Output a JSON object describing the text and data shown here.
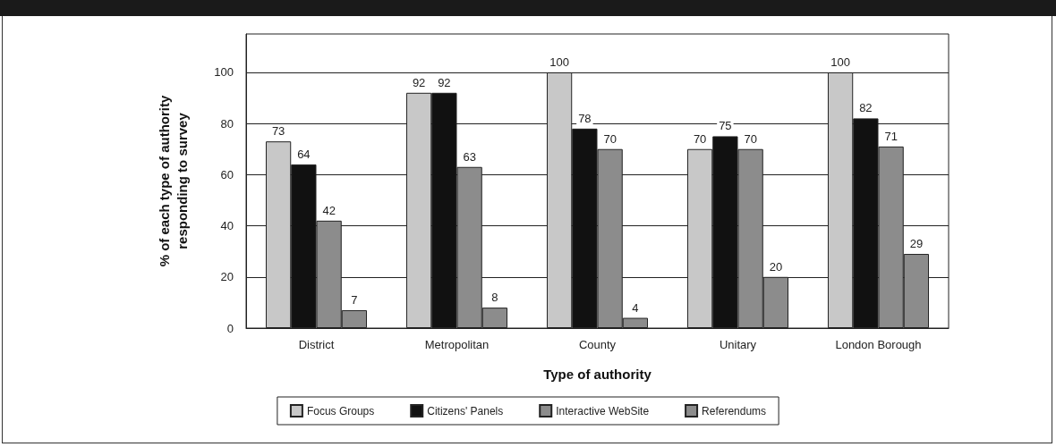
{
  "chart_data": {
    "type": "bar",
    "xlabel": "Type of authority",
    "ylabel": "% of each type of authority\nresponding to survey",
    "categories": [
      "District",
      "Metropolitan",
      "County",
      "Unitary",
      "London Borough"
    ],
    "series": [
      {
        "name": "Focus Groups",
        "color": "#c8c8c8",
        "values": [
          73,
          92,
          100,
          70,
          100
        ]
      },
      {
        "name": "Citizens' Panels",
        "color": "#111111",
        "values": [
          64,
          92,
          78,
          75,
          82
        ]
      },
      {
        "name": "Interactive WebSite",
        "color": "#8c8c8c",
        "values": [
          42,
          63,
          70,
          70,
          71
        ]
      },
      {
        "name": "Referendums",
        "color": "#8c8c8c",
        "values": [
          7,
          8,
          4,
          20,
          29
        ]
      }
    ],
    "ylim": [
      0,
      115
    ],
    "yticks": [
      0,
      20,
      40,
      60,
      80,
      100
    ],
    "grid": "y",
    "legend": "bottom",
    "data_labels": true
  }
}
